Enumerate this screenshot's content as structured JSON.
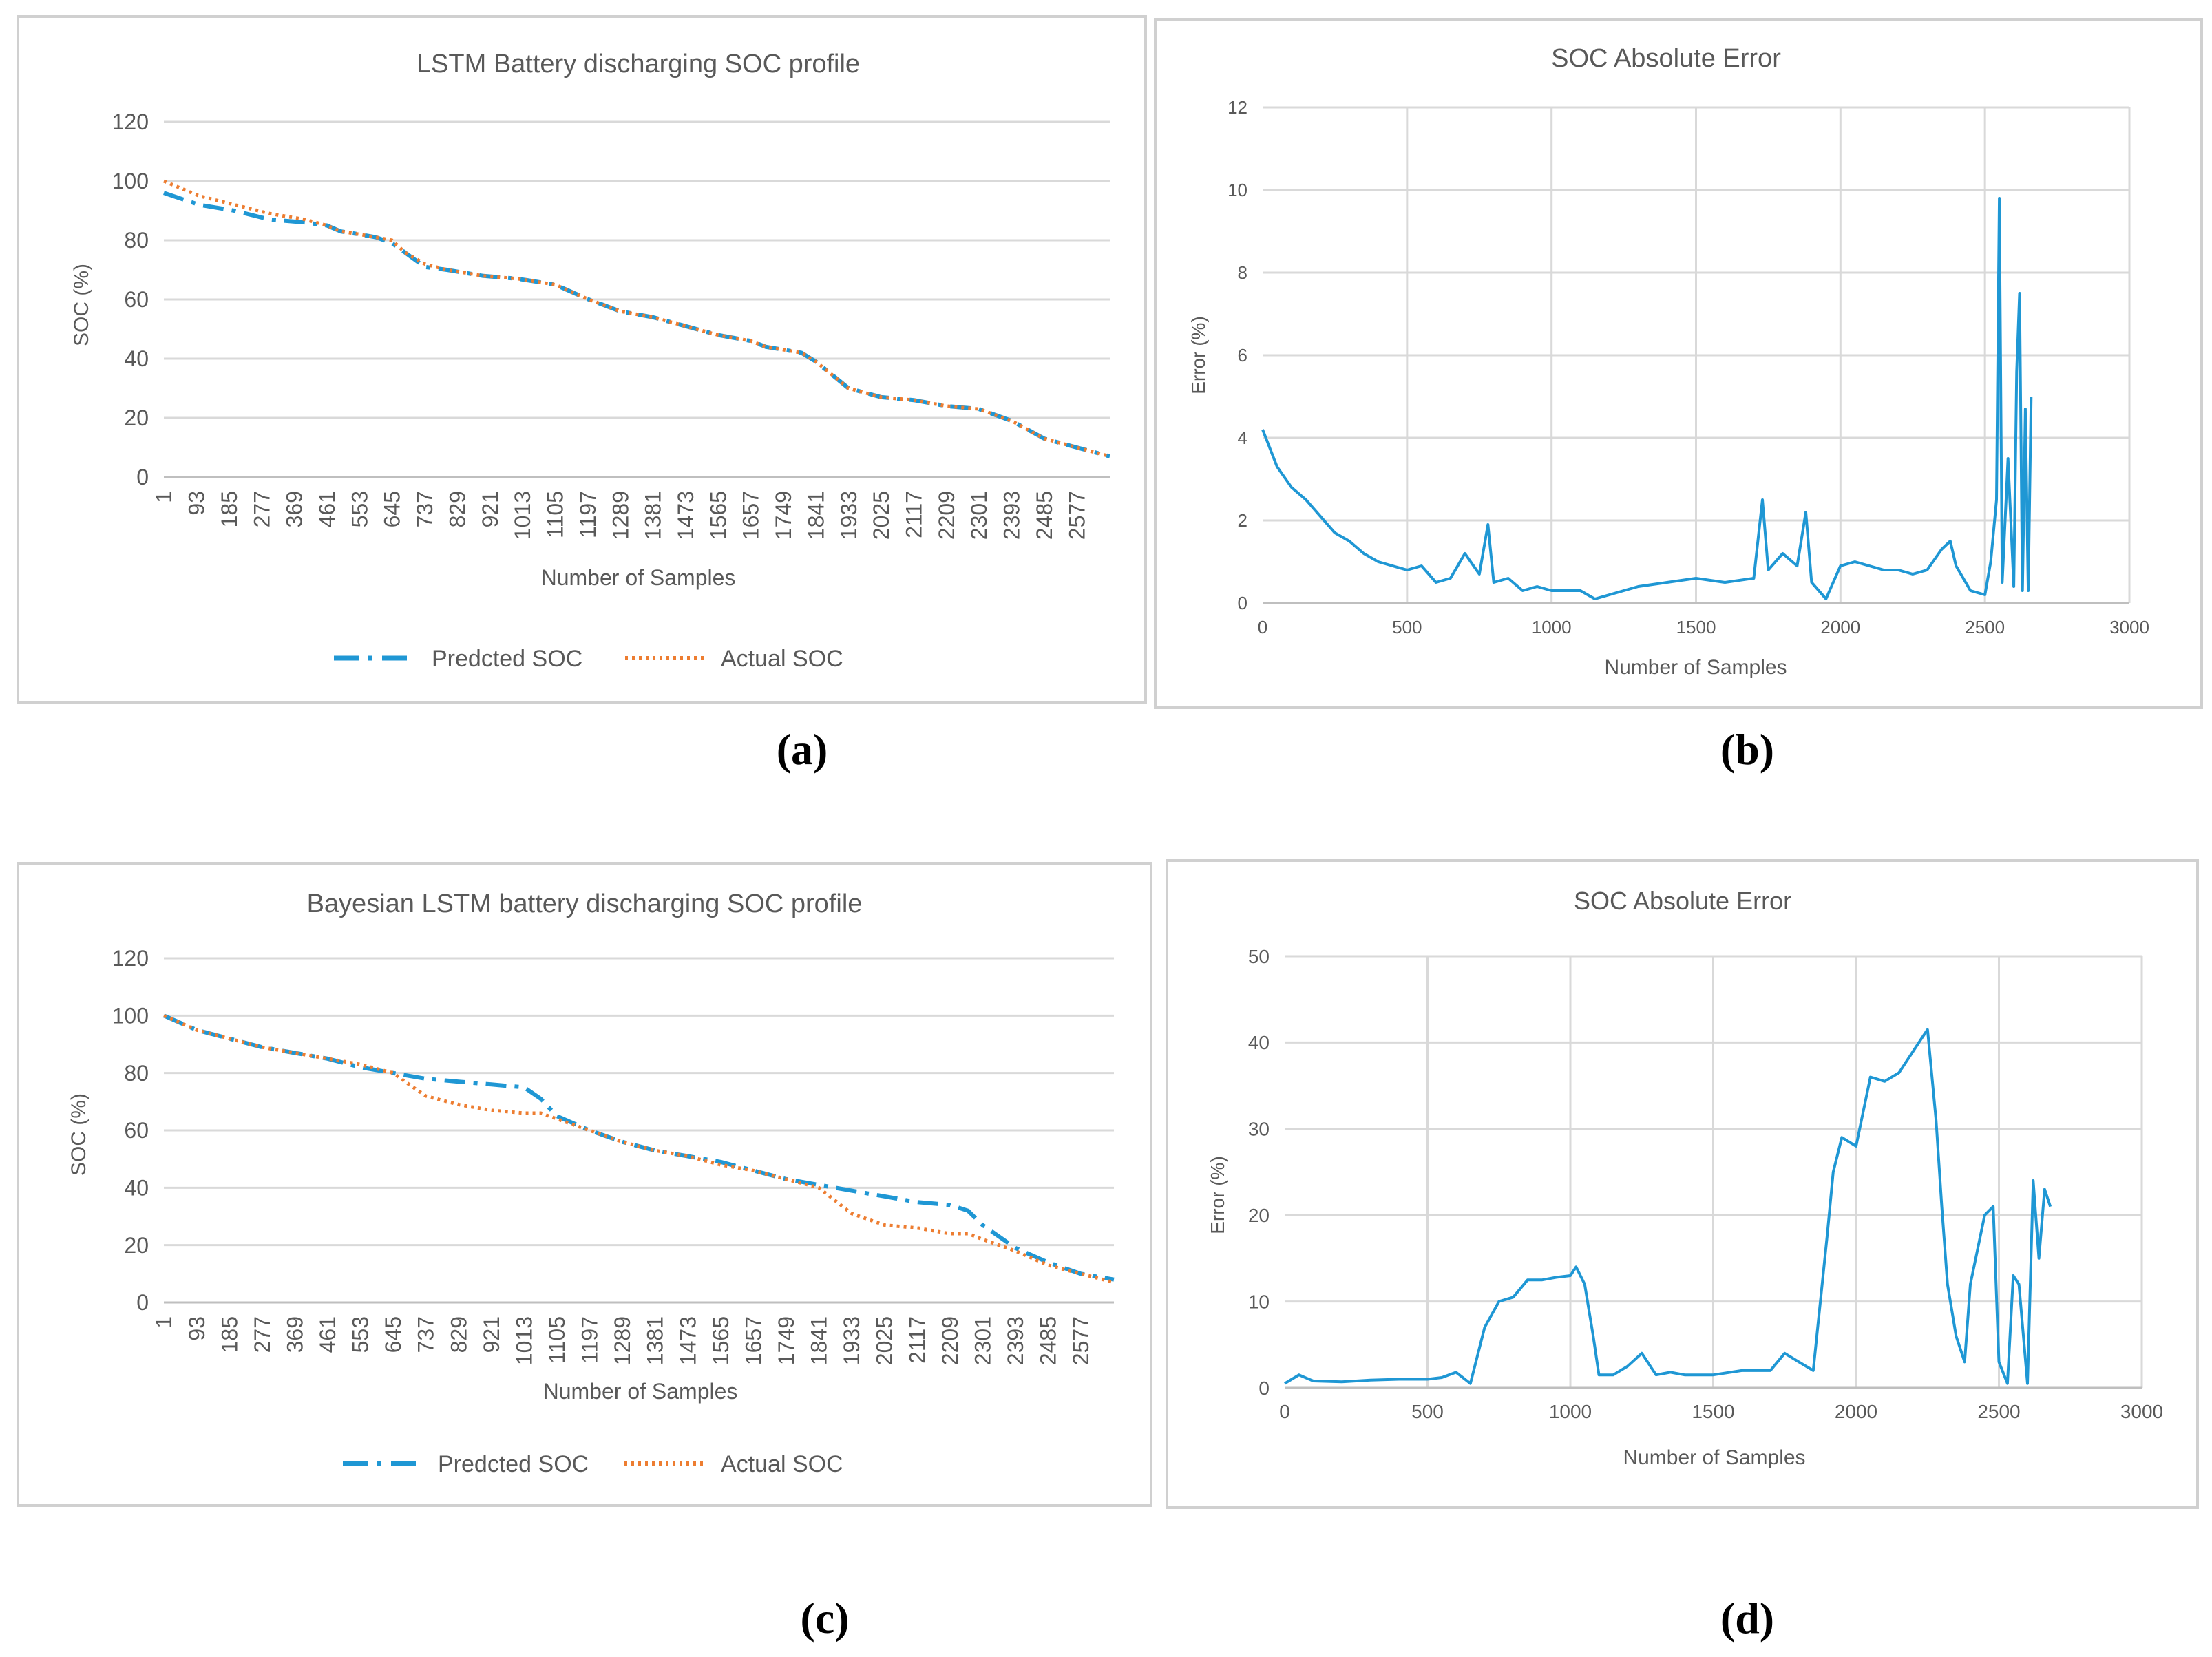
{
  "panel_labels": [
    "(a)",
    "(b)",
    "(c)",
    "(d)"
  ],
  "colors": {
    "predicted": "#1f97d4",
    "actual": "#ed7d31",
    "error": "#1f97d4",
    "grid": "#d9d9d9",
    "border": "#d0d0d0",
    "text": "#595959"
  },
  "chart_data": [
    {
      "type": "line",
      "title": "LSTM Battery discharging SOC profile",
      "xlabel": "Number of Samples",
      "ylabel": "SOC (%)",
      "ylim": [
        0,
        120
      ],
      "yticks": [
        0,
        20,
        40,
        60,
        80,
        100,
        120
      ],
      "xlim": [
        1,
        2670
      ],
      "xticks": [
        1,
        93,
        185,
        277,
        369,
        461,
        553,
        645,
        737,
        829,
        921,
        1013,
        1105,
        1197,
        1289,
        1381,
        1473,
        1565,
        1657,
        1749,
        1841,
        1933,
        2025,
        2117,
        2209,
        2301,
        2393,
        2485,
        2577
      ],
      "legend_position": "bottom",
      "grid": true,
      "series": [
        {
          "name": "Predcted SOC",
          "style": "dash-dot",
          "color": "#1f97d4",
          "x": [
            1,
            100,
            200,
            300,
            400,
            461,
            500,
            553,
            600,
            645,
            680,
            737,
            800,
            900,
            1000,
            1105,
            1200,
            1289,
            1381,
            1473,
            1565,
            1657,
            1700,
            1800,
            1841,
            1933,
            2025,
            2117,
            2209,
            2301,
            2393,
            2485,
            2577,
            2670
          ],
          "y": [
            96,
            92,
            90,
            87,
            86,
            85,
            83,
            82,
            81,
            79,
            76,
            71,
            70,
            68,
            67,
            65,
            60,
            56,
            54,
            51,
            48,
            46,
            44,
            42,
            39,
            30,
            27,
            26,
            24,
            23,
            19,
            13,
            10,
            7
          ]
        },
        {
          "name": "Actual SOC",
          "style": "dotted",
          "color": "#ed7d31",
          "x": [
            1,
            100,
            200,
            300,
            400,
            461,
            500,
            553,
            600,
            645,
            680,
            737,
            800,
            900,
            1000,
            1105,
            1200,
            1289,
            1381,
            1473,
            1565,
            1657,
            1700,
            1800,
            1841,
            1933,
            2025,
            2117,
            2209,
            2301,
            2393,
            2485,
            2577,
            2670
          ],
          "y": [
            100,
            95,
            92,
            89,
            87,
            85,
            83,
            82,
            81,
            80,
            76,
            72,
            70,
            68,
            67,
            65,
            60,
            56,
            54,
            51,
            48,
            46,
            44,
            42,
            39,
            30,
            27,
            26,
            24,
            23,
            19,
            13,
            10,
            7
          ]
        }
      ]
    },
    {
      "type": "line",
      "title": "SOC Absolute Error",
      "xlabel": "Number of Samples",
      "ylabel": "Error (%)",
      "ylim": [
        0,
        12
      ],
      "yticks": [
        0,
        2,
        4,
        6,
        8,
        10,
        12
      ],
      "xlim": [
        0,
        3000
      ],
      "xticks": [
        0,
        500,
        1000,
        1500,
        2000,
        2500,
        3000
      ],
      "grid": true,
      "series": [
        {
          "name": "",
          "color": "#1f97d4",
          "x": [
            0,
            50,
            100,
            150,
            200,
            250,
            300,
            350,
            400,
            450,
            500,
            550,
            600,
            650,
            700,
            750,
            780,
            800,
            850,
            900,
            950,
            1000,
            1050,
            1100,
            1150,
            1200,
            1300,
            1400,
            1500,
            1600,
            1700,
            1730,
            1750,
            1800,
            1850,
            1880,
            1900,
            1950,
            2000,
            2050,
            2100,
            2150,
            2200,
            2250,
            2300,
            2350,
            2380,
            2400,
            2450,
            2500,
            2520,
            2540,
            2550,
            2560,
            2580,
            2600,
            2610,
            2620,
            2630,
            2640,
            2650,
            2660
          ],
          "y": [
            4.2,
            3.3,
            2.8,
            2.5,
            2.1,
            1.7,
            1.5,
            1.2,
            1.0,
            0.9,
            0.8,
            0.9,
            0.5,
            0.6,
            1.2,
            0.7,
            1.9,
            0.5,
            0.6,
            0.3,
            0.4,
            0.3,
            0.3,
            0.3,
            0.1,
            0.2,
            0.4,
            0.5,
            0.6,
            0.5,
            0.6,
            2.5,
            0.8,
            1.2,
            0.9,
            2.2,
            0.5,
            0.1,
            0.9,
            1.0,
            0.9,
            0.8,
            0.8,
            0.7,
            0.8,
            1.3,
            1.5,
            0.9,
            0.3,
            0.2,
            1.0,
            2.5,
            9.8,
            0.5,
            3.5,
            0.4,
            5.6,
            7.5,
            0.3,
            4.7,
            0.3,
            5.0
          ]
        }
      ]
    },
    {
      "type": "line",
      "title": "Bayesian LSTM battery discharging SOC profile",
      "xlabel": "Number of Samples",
      "ylabel": "SOC (%)",
      "ylim": [
        0,
        120
      ],
      "yticks": [
        0,
        20,
        40,
        60,
        80,
        100,
        120
      ],
      "xlim": [
        1,
        2670
      ],
      "xticks": [
        1,
        93,
        185,
        277,
        369,
        461,
        553,
        645,
        737,
        829,
        921,
        1013,
        1105,
        1197,
        1289,
        1381,
        1473,
        1565,
        1657,
        1749,
        1841,
        1933,
        2025,
        2117,
        2209,
        2301,
        2393,
        2485,
        2577
      ],
      "legend_position": "bottom",
      "grid": true,
      "series": [
        {
          "name": "Predcted SOC",
          "style": "dash-dot",
          "color": "#1f97d4",
          "x": [
            1,
            93,
            185,
            277,
            369,
            461,
            553,
            645,
            690,
            737,
            829,
            921,
            1013,
            1060,
            1105,
            1197,
            1289,
            1381,
            1473,
            1565,
            1657,
            1749,
            1841,
            1933,
            2025,
            2117,
            2209,
            2260,
            2301,
            2393,
            2485,
            2577,
            2670
          ],
          "y": [
            100,
            95,
            92,
            89,
            87,
            85,
            82,
            80,
            79,
            78,
            77,
            76,
            75,
            71,
            65,
            60,
            56,
            53,
            51,
            49,
            46,
            43,
            41,
            39,
            37,
            35,
            34,
            32,
            27,
            19,
            14,
            10,
            8
          ]
        },
        {
          "name": "Actual SOC",
          "style": "dotted",
          "color": "#ed7d31",
          "x": [
            1,
            93,
            185,
            277,
            369,
            461,
            553,
            645,
            690,
            737,
            829,
            921,
            1013,
            1060,
            1105,
            1197,
            1289,
            1381,
            1473,
            1565,
            1657,
            1749,
            1841,
            1933,
            2025,
            2117,
            2209,
            2260,
            2301,
            2393,
            2485,
            2577,
            2670
          ],
          "y": [
            100,
            95,
            92,
            89,
            87,
            85,
            83,
            80,
            76,
            72,
            69,
            67,
            66,
            66,
            64,
            60,
            56,
            53,
            51,
            48,
            46,
            43,
            40,
            31,
            27,
            26,
            24,
            24,
            22,
            18,
            13,
            10,
            7
          ]
        }
      ]
    },
    {
      "type": "line",
      "title": "SOC Absolute Error",
      "xlabel": "Number of Samples",
      "ylabel": "Error (%)",
      "ylim": [
        0,
        50
      ],
      "yticks": [
        0,
        10,
        20,
        30,
        40,
        50
      ],
      "xlim": [
        0,
        3000
      ],
      "xticks": [
        0,
        500,
        1000,
        1500,
        2000,
        2500,
        3000
      ],
      "grid": true,
      "series": [
        {
          "name": "",
          "color": "#1f97d4",
          "x": [
            0,
            50,
            100,
            200,
            300,
            400,
            500,
            550,
            600,
            650,
            700,
            750,
            800,
            850,
            900,
            950,
            1000,
            1020,
            1050,
            1080,
            1100,
            1150,
            1200,
            1250,
            1300,
            1350,
            1400,
            1500,
            1600,
            1700,
            1750,
            1800,
            1850,
            1900,
            1920,
            1950,
            2000,
            2050,
            2100,
            2150,
            2200,
            2230,
            2250,
            2280,
            2300,
            2320,
            2350,
            2380,
            2400,
            2450,
            2480,
            2500,
            2530,
            2550,
            2570,
            2600,
            2620,
            2640,
            2660,
            2680
          ],
          "y": [
            0.5,
            1.5,
            0.8,
            0.7,
            0.9,
            1.0,
            1.0,
            1.2,
            1.8,
            0.5,
            7.0,
            10.0,
            10.5,
            12.5,
            12.5,
            12.8,
            13.0,
            14.0,
            12.0,
            6.0,
            1.5,
            1.5,
            2.5,
            4.0,
            1.5,
            1.8,
            1.5,
            1.5,
            2.0,
            2.0,
            4.0,
            3.0,
            2.0,
            18.0,
            25.0,
            29.0,
            28.0,
            36.0,
            35.5,
            36.5,
            39.0,
            40.5,
            41.5,
            31.0,
            21.0,
            12.0,
            6.0,
            3.0,
            12.0,
            20.0,
            21.0,
            3.0,
            0.5,
            13.0,
            12.0,
            0.5,
            24.0,
            15.0,
            23.0,
            21.0
          ]
        }
      ]
    }
  ]
}
